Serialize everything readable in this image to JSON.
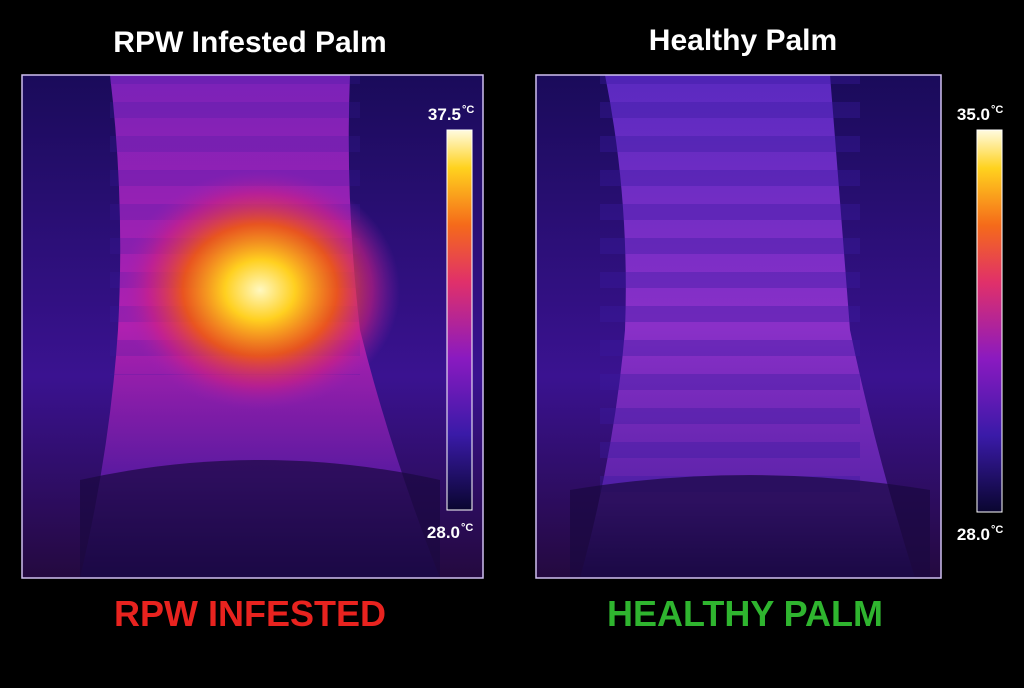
{
  "panels": [
    {
      "title": "RPW Infested Palm",
      "scale_max": "37.5",
      "scale_max_unit": "°C",
      "scale_min": "28.0",
      "scale_min_unit": "°C",
      "caption": "RPW INFESTED"
    },
    {
      "title": "Healthy Palm",
      "scale_max": "35.0",
      "scale_max_unit": "°C",
      "scale_min": "28.0",
      "scale_min_unit": "°C",
      "caption": "HEALTHY PALM"
    }
  ]
}
